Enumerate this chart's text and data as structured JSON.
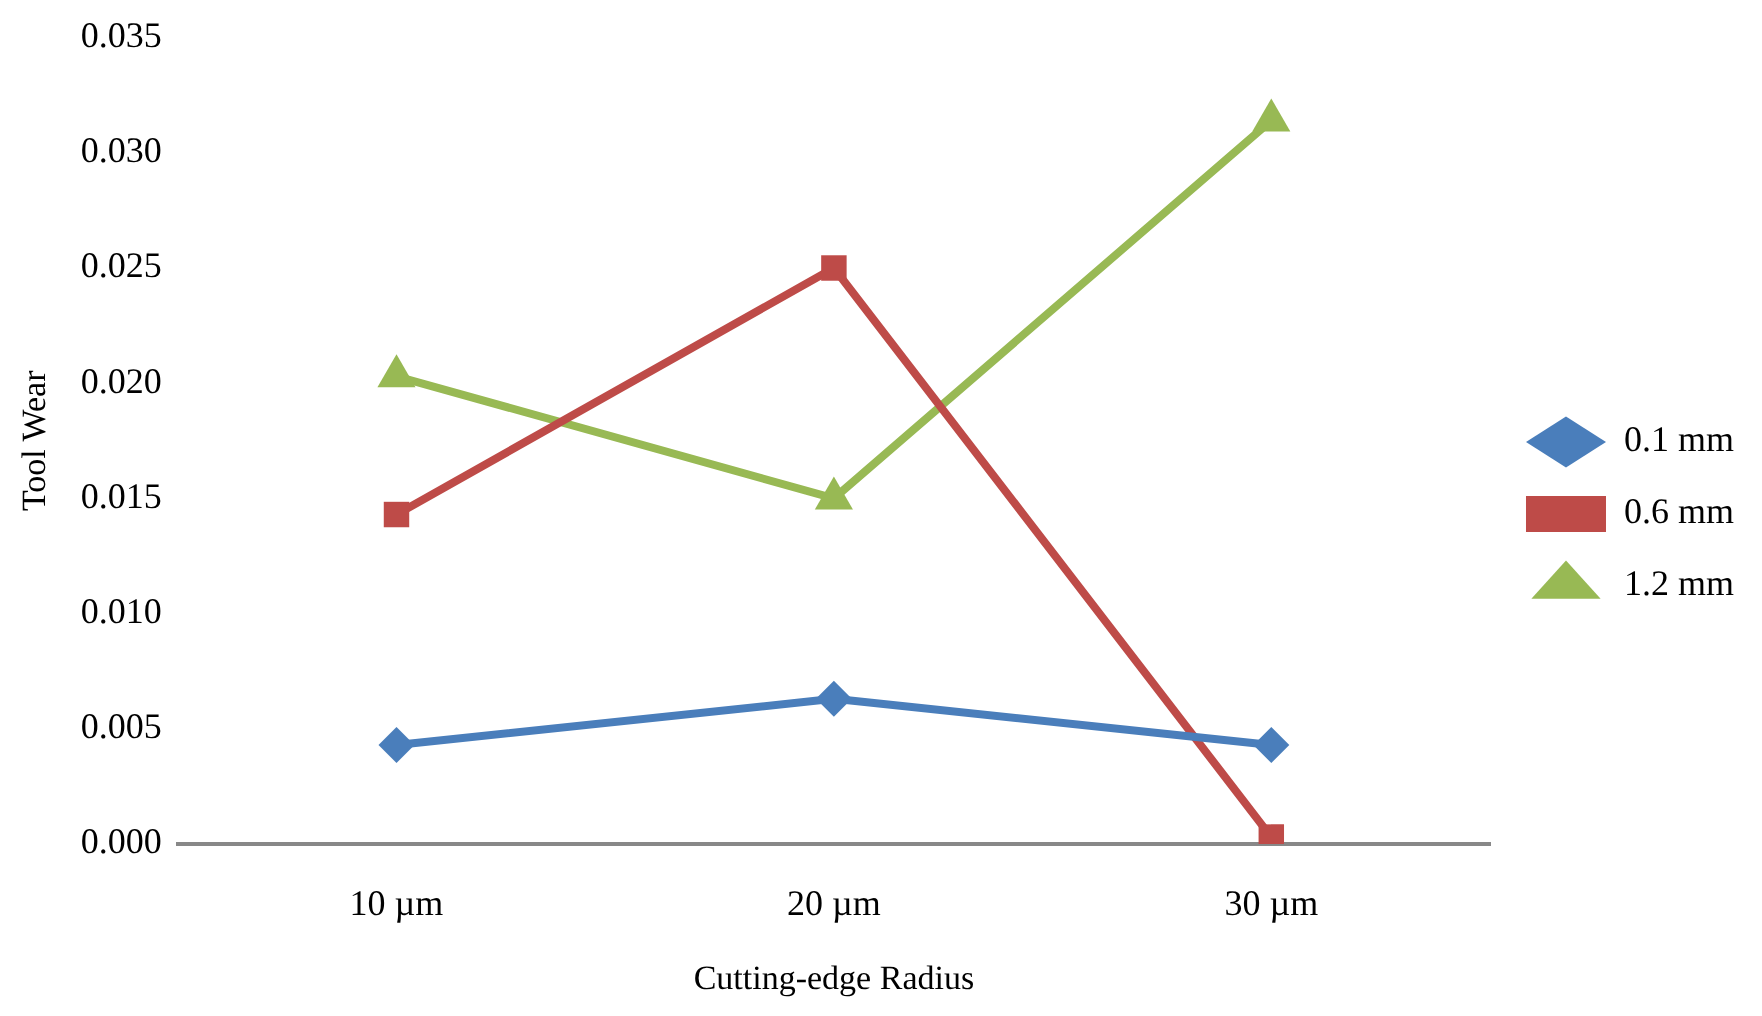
{
  "chart_data": {
    "type": "line",
    "xlabel": "Cutting-edge Radius",
    "ylabel": "Tool Wear",
    "categories": [
      "10 µm",
      "20 µm",
      "30 µm"
    ],
    "series": [
      {
        "name": "0.1 mm",
        "color": "#4a7ebb",
        "marker": "diamond",
        "values": [
          0.0043,
          0.0063,
          0.0043
        ]
      },
      {
        "name": "0.6 mm",
        "color": "#be4b48",
        "marker": "square",
        "values": [
          0.0143,
          0.025,
          0.0003
        ]
      },
      {
        "name": "1.2 mm",
        "color": "#98b954",
        "marker": "triangle",
        "values": [
          0.0203,
          0.015,
          0.0314
        ]
      }
    ],
    "ylim": [
      0,
      0.035
    ],
    "yticks": [
      {
        "value": 0,
        "label": "0.000"
      },
      {
        "value": 0.005,
        "label": "0.005"
      },
      {
        "value": 0.01,
        "label": "0.010"
      },
      {
        "value": 0.015,
        "label": "0.015"
      },
      {
        "value": 0.02,
        "label": "0.020"
      },
      {
        "value": 0.025,
        "label": "0.025"
      },
      {
        "value": 0.03,
        "label": "0.030"
      },
      {
        "value": 0.035,
        "label": "0.035"
      }
    ],
    "grid": false,
    "legend": "right",
    "line_style": "solid"
  }
}
